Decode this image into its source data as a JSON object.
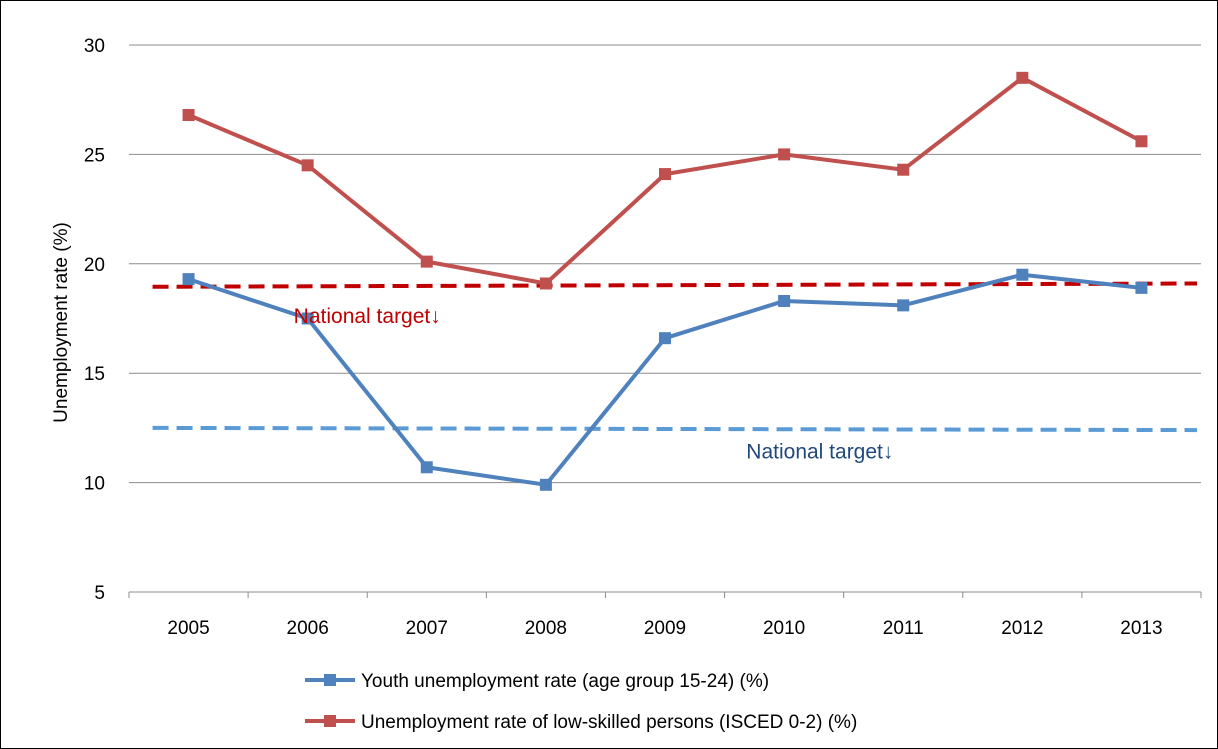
{
  "chart_data": {
    "type": "line",
    "title": "",
    "xlabel": "",
    "ylabel": "Unemployment rate (%)",
    "categories": [
      "2005",
      "2006",
      "2007",
      "2008",
      "2009",
      "2010",
      "2011",
      "2012",
      "2013"
    ],
    "ylim": [
      5,
      30
    ],
    "yticks": [
      5,
      10,
      15,
      20,
      25,
      30
    ],
    "grid": "horizontal",
    "legend_position": "bottom",
    "series": [
      {
        "name": "Youth unemployment rate (age group 15-24) (%)",
        "color": "#4F81BD",
        "marker": "square",
        "values": [
          19.3,
          17.5,
          10.7,
          9.9,
          16.6,
          18.3,
          18.1,
          19.5,
          18.9
        ]
      },
      {
        "name": "Unemployment rate of low-skilled persons (ISCED 0-2) (%)",
        "color": "#C0504D",
        "marker": "square",
        "values": [
          26.8,
          24.5,
          20.1,
          19.1,
          24.1,
          25.0,
          24.3,
          28.5,
          25.6
        ]
      }
    ],
    "reference_lines": [
      {
        "color": "#C00000",
        "style": "dashed",
        "y_start": 18.95,
        "y_end": 19.1
      },
      {
        "color": "#5B9BD5",
        "style": "dashed",
        "y_start": 12.5,
        "y_end": 12.4
      }
    ],
    "annotations": [
      {
        "text": "National target↓",
        "color": "#C00000",
        "x": "2006.5",
        "y": 17.3
      },
      {
        "text": "National target↓",
        "color": "#1F497D",
        "x": "2010.3",
        "y": 11.1
      }
    ]
  }
}
